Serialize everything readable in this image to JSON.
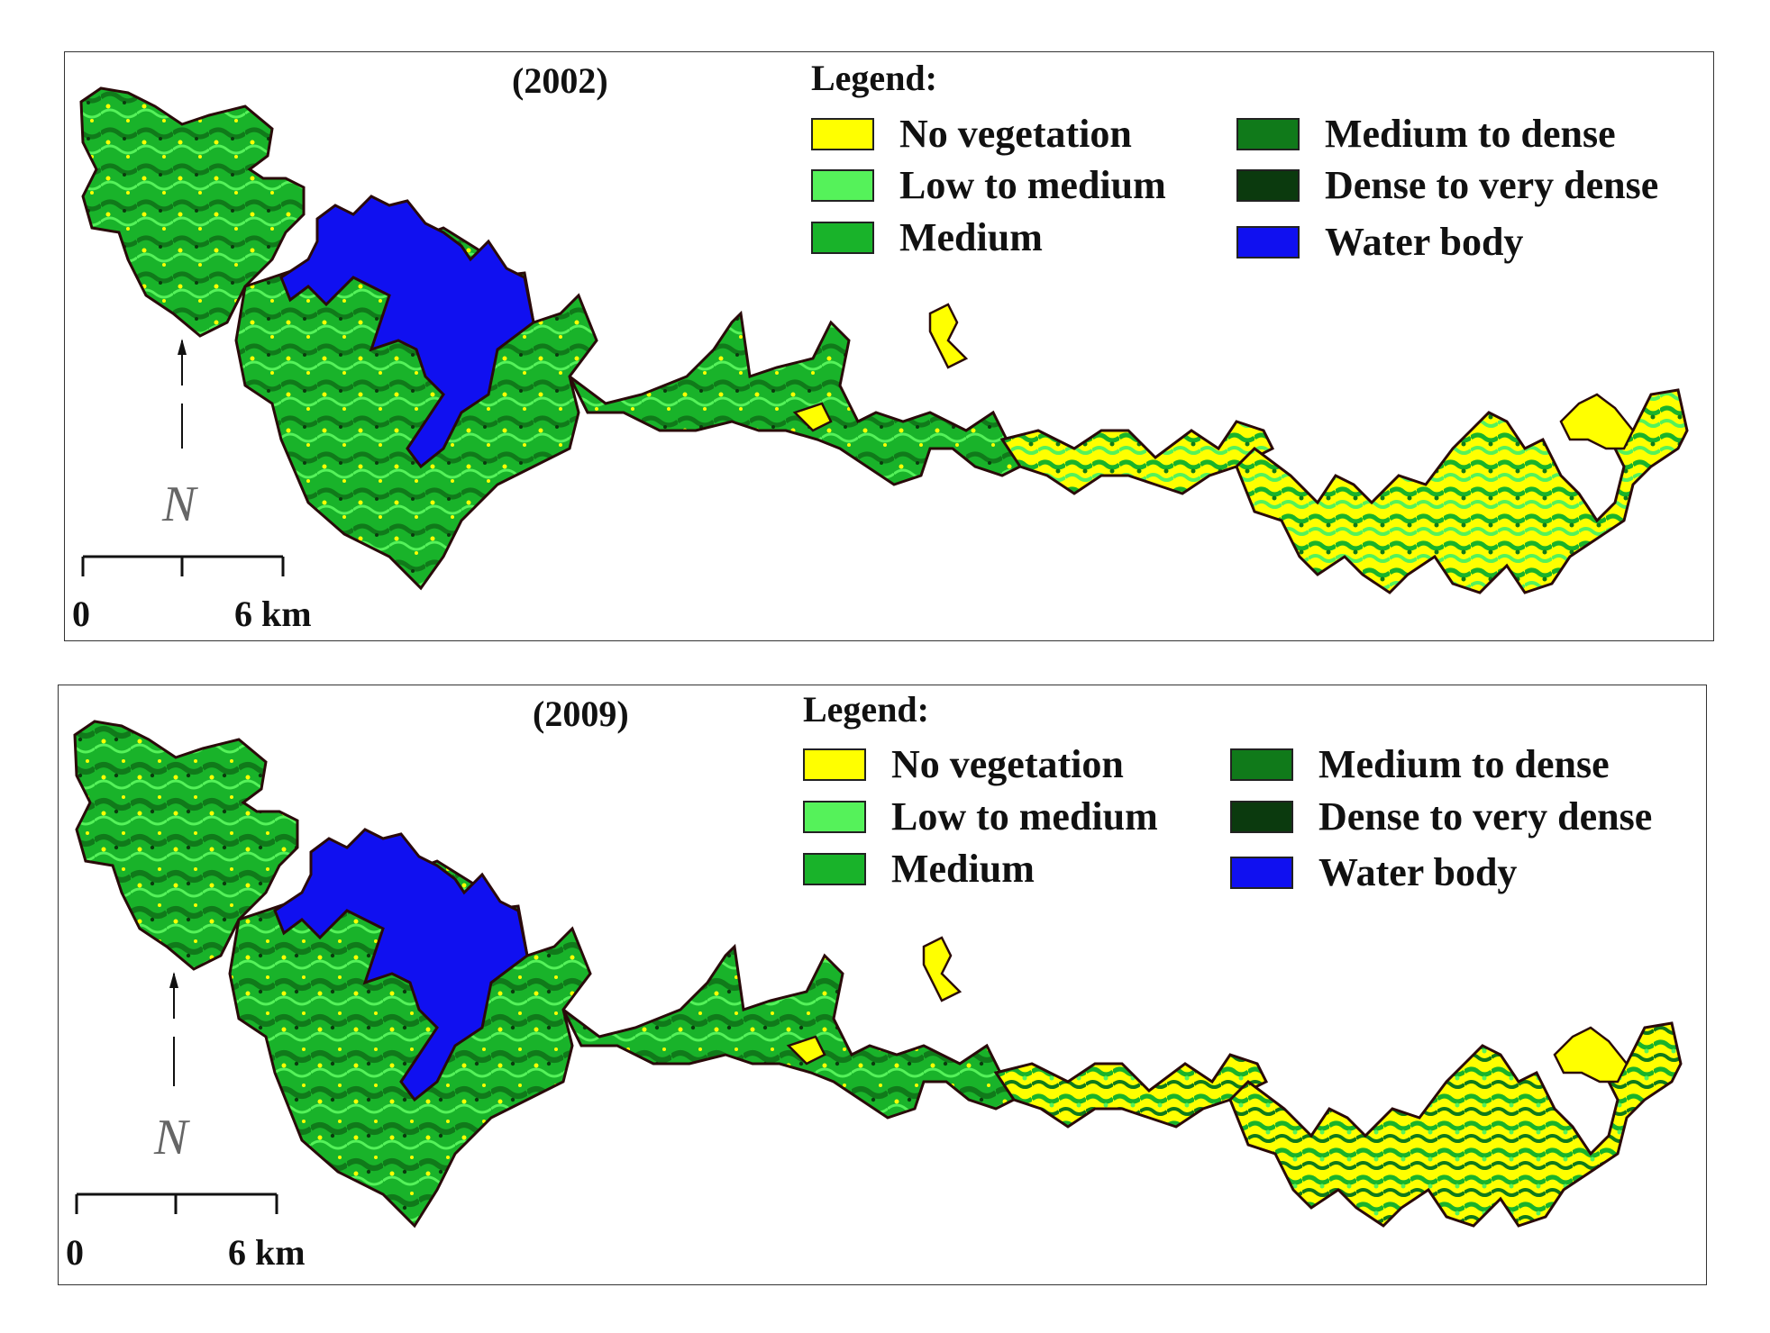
{
  "colors": {
    "no_vegetation": "#ffff00",
    "low_to_medium": "#55f25a",
    "medium": "#19b32a",
    "medium_to_dense": "#107a1a",
    "dense_to_very_dense": "#0b3a0e",
    "water_body": "#1010f0",
    "boundary": "#2a0a0a"
  },
  "legend": {
    "title": "Legend:",
    "items": [
      {
        "label": "No vegetation",
        "color": "#ffff00"
      },
      {
        "label": "Low to medium",
        "color": "#55f25a"
      },
      {
        "label": "Medium",
        "color": "#19b32a"
      },
      {
        "label": "Medium to dense",
        "color": "#107a1a"
      },
      {
        "label": "Dense to very dense",
        "color": "#0b3a0e"
      },
      {
        "label": "Water body",
        "color": "#1010f0"
      }
    ]
  },
  "panels": [
    {
      "year": "(2002)",
      "scale_start": "0",
      "scale_end": "6 km",
      "north": "N"
    },
    {
      "year": "(2009)",
      "scale_start": "0",
      "scale_end": "6 km",
      "north": "N"
    }
  ]
}
